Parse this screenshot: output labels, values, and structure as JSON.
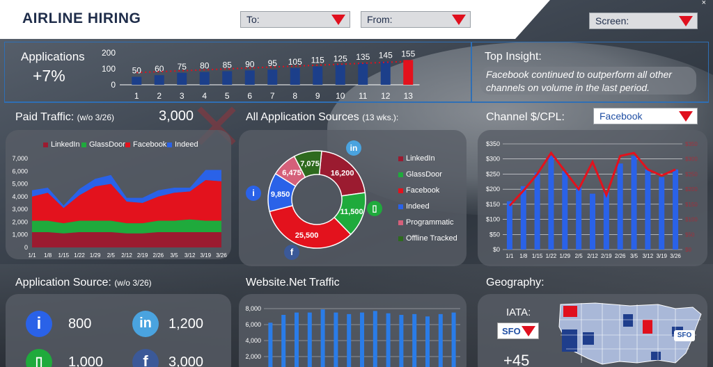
{
  "header": {
    "title": "AIRLINE HIRING",
    "to_label": "To:",
    "from_label": "From:",
    "screen_label": "Screen:",
    "close_icon": "close-icon"
  },
  "applications": {
    "label": "Applications",
    "change": "+7%"
  },
  "top_insight": {
    "label": "Top Insight:",
    "text": "Facebook continued to outperform all other channels on volume in the last period."
  },
  "paid_traffic": {
    "label": "Paid Traffic:",
    "note": "(w/o 3/26)",
    "value": "3,000"
  },
  "all_sources": {
    "label": "All Application Sources",
    "note": "(13 wks.):"
  },
  "channel_cpl": {
    "label": "Channel $/CPL:",
    "selected": "Facebook"
  },
  "app_source": {
    "label": "Application Source:",
    "note": "(w/o 3/26)",
    "items": [
      {
        "icon": "indeed-icon",
        "value": "800"
      },
      {
        "icon": "linkedin-icon",
        "value": "1,200"
      },
      {
        "icon": "glassdoor-icon",
        "value": "1,000"
      },
      {
        "icon": "facebook-icon",
        "value": "3,000"
      }
    ]
  },
  "website": {
    "label": "Website.Net Traffic"
  },
  "geography": {
    "label": "Geography:",
    "iata_label": "IATA:",
    "iata_value": "SFO",
    "value": "+45"
  },
  "colors": {
    "linkedin": "#9b1b30",
    "glassdoor": "#1faa3c",
    "facebook": "#e3121d",
    "indeed": "#2a62e8",
    "programmatic": "#d5607a",
    "offline": "#2e6a1e",
    "bar": "#1c3f8a",
    "bar_highlight": "#e3121d",
    "accent": "#2f6fb5"
  },
  "chart_data": [
    {
      "type": "bar",
      "id": "applications",
      "categories": [
        "1",
        "2",
        "3",
        "4",
        "5",
        "6",
        "7",
        "8",
        "9",
        "10",
        "11",
        "12",
        "13"
      ],
      "values": [
        50,
        60,
        75,
        80,
        85,
        90,
        95,
        105,
        115,
        125,
        135,
        145,
        155
      ],
      "yticks": [
        "200",
        "100",
        "0"
      ],
      "ylim": [
        0,
        200
      ],
      "trendline": true
    },
    {
      "type": "area",
      "id": "paid_traffic",
      "categories": [
        "1/1",
        "1/8",
        "1/15",
        "1/22",
        "1/29",
        "2/5",
        "2/12",
        "2/19",
        "2/26",
        "3/5",
        "3/12",
        "3/19",
        "3/26"
      ],
      "yticks": [
        "7,000",
        "6,000",
        "5,000",
        "4,000",
        "3,000",
        "2,000",
        "1,000",
        "0"
      ],
      "ylim": [
        0,
        7000
      ],
      "stacked": true,
      "series": [
        {
          "name": "LinkedIn",
          "values": [
            1200,
            1200,
            1100,
            1200,
            1200,
            1200,
            1100,
            1100,
            1200,
            1200,
            1200,
            1200,
            1200
          ]
        },
        {
          "name": "GlassDoor",
          "values": [
            900,
            900,
            800,
            900,
            900,
            900,
            800,
            800,
            900,
            900,
            1000,
            900,
            900
          ]
        },
        {
          "name": "Facebook",
          "values": [
            1900,
            2200,
            1200,
            2000,
            2700,
            2900,
            1700,
            1600,
            1900,
            2200,
            2200,
            3200,
            3100
          ]
        },
        {
          "name": "Indeed",
          "values": [
            500,
            400,
            200,
            500,
            600,
            700,
            300,
            400,
            500,
            400,
            300,
            800,
            900
          ]
        }
      ]
    },
    {
      "type": "pie",
      "id": "all_sources",
      "labels": [
        "LinkedIn",
        "GlassDoor",
        "Facebook",
        "Indeed",
        "Programmatic",
        "Offline Tracked"
      ],
      "values": [
        16200,
        11500,
        25500,
        9850,
        6475,
        7075
      ],
      "value_labels": [
        "16,200",
        "11,500",
        "25,500",
        "9,850",
        "6,475",
        "7,075"
      ]
    },
    {
      "type": "bar",
      "id": "channel_cpl",
      "categories": [
        "1/1",
        "1/8",
        "1/15",
        "1/22",
        "1/29",
        "2/5",
        "2/12",
        "2/19",
        "2/26",
        "3/5",
        "3/12",
        "3/19",
        "3/26"
      ],
      "values": [
        160,
        210,
        255,
        310,
        260,
        210,
        185,
        190,
        285,
        310,
        265,
        240,
        265
      ],
      "yticks": [
        "$350",
        "$300",
        "$250",
        "$200",
        "$150",
        "$100",
        "$50",
        "$0"
      ],
      "ylim": [
        0,
        350
      ],
      "line_values": [
        145,
        195,
        250,
        320,
        260,
        200,
        290,
        180,
        310,
        320,
        265,
        245,
        265
      ]
    },
    {
      "type": "bar",
      "id": "website",
      "values": [
        6200,
        7200,
        7500,
        7500,
        7900,
        7500,
        7300,
        7500,
        7700,
        7400,
        7200,
        7300,
        7000,
        7300,
        7500
      ],
      "yticks": [
        "8,000",
        "6,000",
        "4,000",
        "2,000"
      ],
      "ylim": [
        0,
        8000
      ]
    }
  ]
}
